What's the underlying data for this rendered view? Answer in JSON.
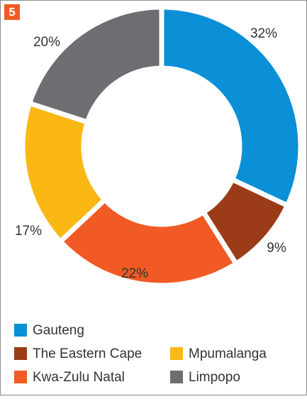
{
  "badge": "5",
  "chart_data": {
    "type": "donut",
    "categories": [
      "Gauteng",
      "The Eastern Cape",
      "Kwa-Zulu Natal",
      "Mpumalanga",
      "Limpopo"
    ],
    "values": [
      32,
      9,
      22,
      17,
      20
    ],
    "value_labels": [
      "32%",
      "9%",
      "22%",
      "17%",
      "20%"
    ],
    "colors": [
      "#0b8fd6",
      "#9b3b17",
      "#f15a24",
      "#fbb814",
      "#6d6e72"
    ]
  }
}
